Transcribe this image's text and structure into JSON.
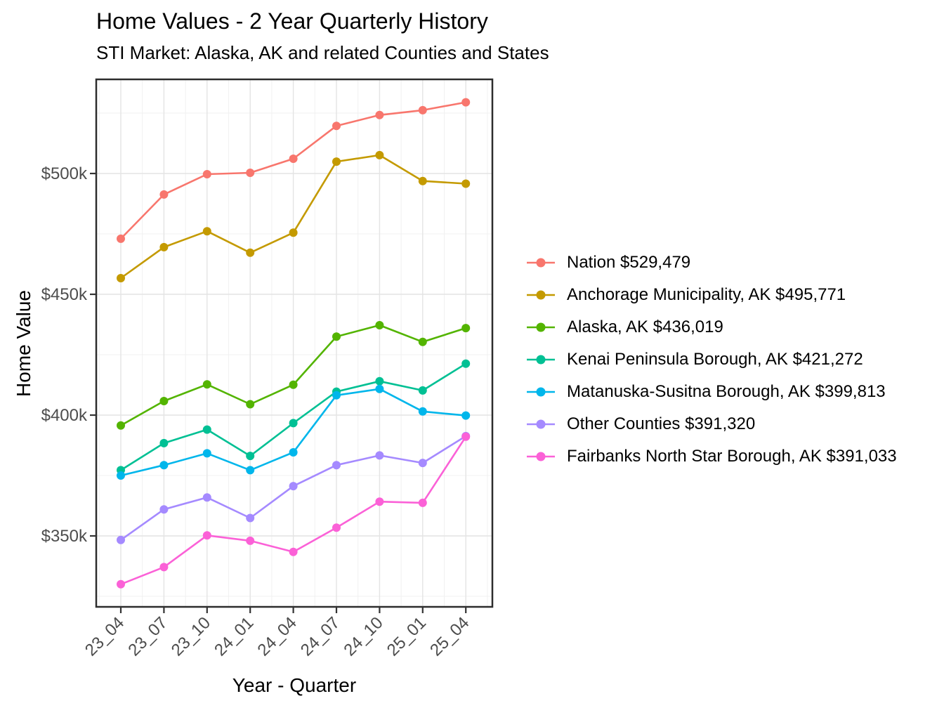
{
  "page": {
    "background": "#ffffff"
  },
  "chart_data": {
    "type": "line",
    "title": "Home Values - 2 Year Quarterly History",
    "subtitle": "STI Market: Alaska, AK and related Counties and States",
    "xlabel": "Year - Quarter",
    "ylabel": "Home Value",
    "x_categories": [
      "23_04",
      "23_07",
      "23_10",
      "24_01",
      "24_04",
      "24_07",
      "24_10",
      "25_01",
      "25_04"
    ],
    "y_ticks": [
      {
        "value": 350000,
        "label": "$350k"
      },
      {
        "value": 400000,
        "label": "$400k"
      },
      {
        "value": 450000,
        "label": "$450k"
      },
      {
        "value": 500000,
        "label": "$500k"
      }
    ],
    "y_minor": [
      325000,
      375000,
      425000,
      475000,
      525000
    ],
    "ylim": [
      320600,
      539200
    ],
    "grid": "major and minor gridlines, light gray on white panel",
    "legend_position": "right",
    "series": [
      {
        "name": "Nation",
        "legend_label": "Nation $529,479",
        "color": "#F8766D",
        "values": [
          473000,
          491300,
          499700,
          500300,
          506100,
          519700,
          524200,
          526200,
          529479
        ]
      },
      {
        "name": "Anchorage Municipality, AK",
        "legend_label": "Anchorage Municipality, AK $495,771",
        "color": "#C49A00",
        "values": [
          456700,
          469500,
          476100,
          467200,
          475500,
          504900,
          507600,
          496900,
          495771
        ]
      },
      {
        "name": "Alaska, AK",
        "legend_label": "Alaska, AK $436,019",
        "color": "#53B400",
        "values": [
          395700,
          405800,
          412700,
          404500,
          412600,
          432500,
          437200,
          430300,
          436019
        ]
      },
      {
        "name": "Kenai Peninsula Borough, AK",
        "legend_label": "Kenai Peninsula Borough, AK $421,272",
        "color": "#00C094",
        "values": [
          377200,
          388400,
          394000,
          383100,
          396700,
          409700,
          414000,
          410200,
          421272
        ]
      },
      {
        "name": "Matanuska-Susitna Borough, AK",
        "legend_label": "Matanuska-Susitna Borough, AK $399,813",
        "color": "#00B6EB",
        "values": [
          375000,
          379300,
          384200,
          377200,
          384600,
          408200,
          410800,
          401500,
          399813
        ]
      },
      {
        "name": "Other Counties",
        "legend_label": "Other Counties $391,320",
        "color": "#A58AFF",
        "values": [
          348300,
          361000,
          365900,
          357400,
          370600,
          379300,
          383300,
          380200,
          391320
        ]
      },
      {
        "name": "Fairbanks North Star Borough, AK",
        "legend_label": "Fairbanks North Star Borough, AK $391,033",
        "color": "#FB61D7",
        "values": [
          330000,
          337100,
          350200,
          348000,
          343400,
          353400,
          364200,
          363700,
          391033
        ]
      }
    ]
  },
  "style_colors": {
    "grid_major": "#e4e4e4",
    "grid_minor": "#f1f1f1",
    "panel_border": "#2d2d2d",
    "tick_mark": "#333333",
    "axis_text": "#4d4d4d",
    "text": "#000000"
  }
}
